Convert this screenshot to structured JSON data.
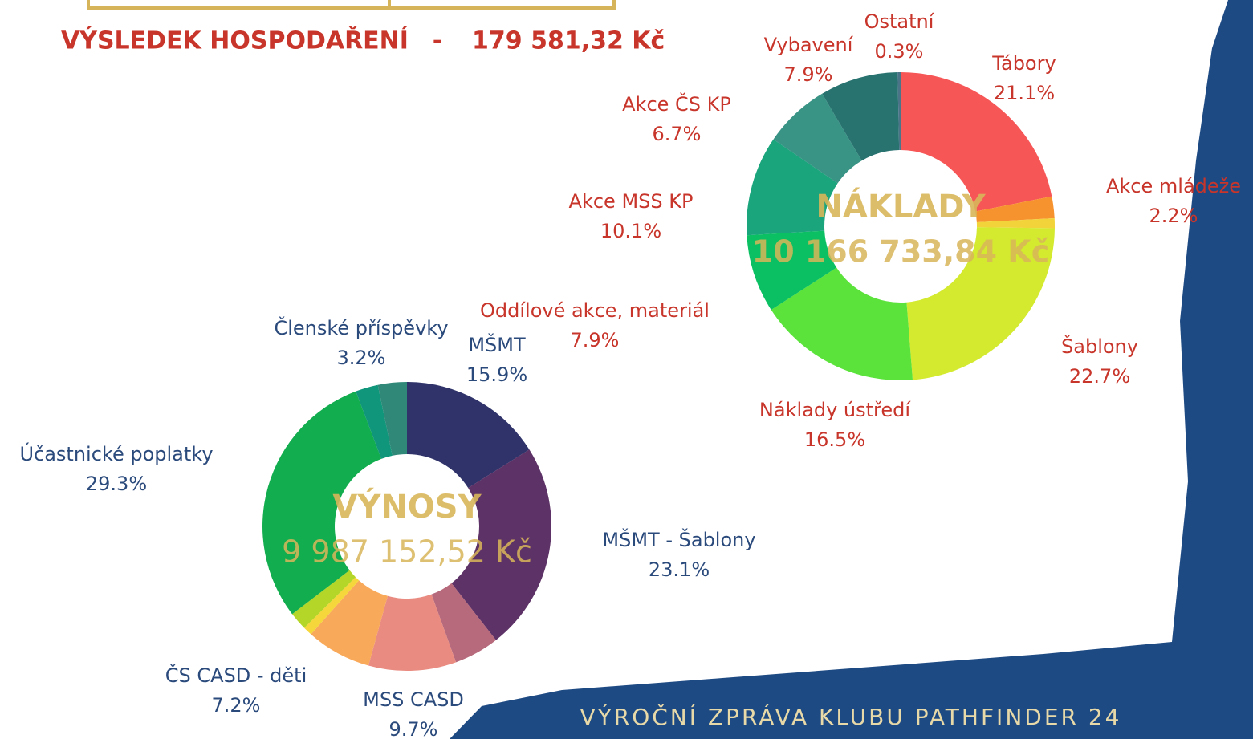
{
  "header": {
    "result_label": "VÝSLEDEK HOSPODAŘENÍ",
    "separator": "-",
    "result_value": "179 581,32 Kč"
  },
  "footer": "VÝROČNÍ ZPRÁVA KLUBU PATHFINDER 24",
  "chart_data": [
    {
      "type": "pie",
      "title": "NÁKLADY",
      "subtitle": "10 166 733,84 Kč",
      "categories": [
        "Tábory",
        "Akce mládeže",
        null,
        "Šablony",
        "Náklady ústředí",
        "Oddílové akce, materiál",
        "Akce MSS KP",
        "Akce ČS KP",
        "Vybavení",
        "Ostatní"
      ],
      "values": [
        21.1,
        2.2,
        1,
        22.7,
        16.5,
        7.9,
        10.1,
        6.7,
        7.9,
        0.3
      ],
      "value_labels": [
        "21.1%",
        "2.2%",
        null,
        "22.7%",
        "16.5%",
        "7.9%",
        "10.1%",
        "6.7%",
        "7.9%",
        "0.3%"
      ],
      "colors": [
        "#f75657",
        "#f7932f",
        "#f2d43a",
        "#d3ea2e",
        "#5be33b",
        "#0bc062",
        "#1aa57c",
        "#3a9486",
        "#287270",
        "#4b7489"
      ]
    },
    {
      "type": "pie",
      "title": "VÝNOSY",
      "subtitle": "9 987 152,52 Kč",
      "categories": [
        "MŠMT",
        "MŠMT - Šablony",
        null,
        "MSS CASD",
        "ČS CASD - děti",
        null,
        null,
        "Účastnické poplatky",
        null,
        "Členské příspěvky"
      ],
      "values": [
        15.9,
        23.1,
        5,
        9.7,
        7.2,
        1,
        2,
        29.3,
        2.5,
        3.2
      ],
      "value_labels": [
        "15.9%",
        "23.1%",
        null,
        "9.7%",
        "7.2%",
        null,
        null,
        "29.3%",
        null,
        "3.2%"
      ],
      "colors": [
        "#2f336a",
        "#5d3266",
        "#b66a7c",
        "#e98b80",
        "#f9a95a",
        "#f5d73c",
        "#b3d629",
        "#12ad4e",
        "#10967a",
        "#2f8878"
      ]
    }
  ]
}
